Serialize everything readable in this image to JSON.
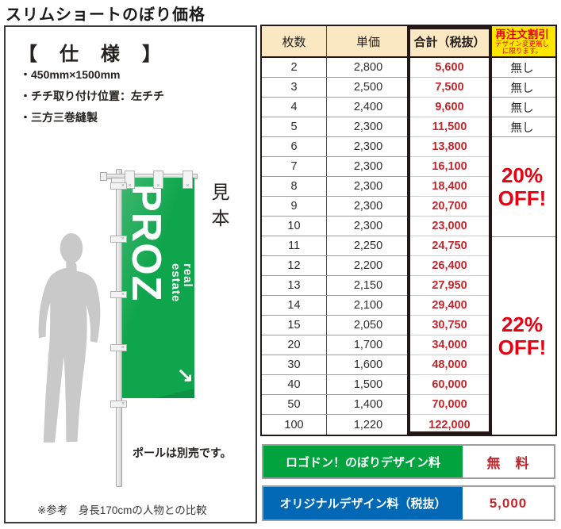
{
  "page": {
    "title": "スリムショートのぼり価格"
  },
  "spec": {
    "heading": "【　仕　様　】",
    "items": [
      "・450mm×1500mm",
      "・チチ取り付け位置：左チチ",
      "・三方三巻縫製"
    ],
    "sample_label": "見本",
    "flag": {
      "main_text": "PROZ",
      "sub_line1": "real",
      "sub_line2": "estate",
      "arrow_icon": "↗"
    },
    "pole_note": "ポールは別売です。",
    "reference_note": "※参考　身長170cmの人物との比較"
  },
  "price_table": {
    "headers": {
      "qty": "枚数",
      "unit": "単価",
      "total": "合計（税抜）",
      "discount": "再注文割引",
      "discount_note_line1": "デザイン変更無し",
      "discount_note_line2": "に限ります。"
    },
    "rows": [
      {
        "qty": "2",
        "unit": "2,800",
        "total": "5,600",
        "discount": "無し"
      },
      {
        "qty": "3",
        "unit": "2,500",
        "total": "7,500",
        "discount": "無し"
      },
      {
        "qty": "4",
        "unit": "2,400",
        "total": "9,600",
        "discount": "無し"
      },
      {
        "qty": "5",
        "unit": "2,300",
        "total": "11,500",
        "discount": "無し"
      },
      {
        "qty": "6",
        "unit": "2,300",
        "total": "13,800"
      },
      {
        "qty": "7",
        "unit": "2,300",
        "total": "16,100"
      },
      {
        "qty": "8",
        "unit": "2,300",
        "total": "18,400"
      },
      {
        "qty": "9",
        "unit": "2,300",
        "total": "20,700"
      },
      {
        "qty": "10",
        "unit": "2,300",
        "total": "23,000"
      },
      {
        "qty": "11",
        "unit": "2,250",
        "total": "24,750"
      },
      {
        "qty": "12",
        "unit": "2,200",
        "total": "26,400"
      },
      {
        "qty": "13",
        "unit": "2,150",
        "total": "27,950"
      },
      {
        "qty": "14",
        "unit": "2,100",
        "total": "29,400"
      },
      {
        "qty": "15",
        "unit": "2,050",
        "total": "30,750"
      },
      {
        "qty": "20",
        "unit": "1,700",
        "total": "34,000"
      },
      {
        "qty": "30",
        "unit": "1,600",
        "total": "48,000"
      },
      {
        "qty": "40",
        "unit": "1,500",
        "total": "60,000"
      },
      {
        "qty": "50",
        "unit": "1,400",
        "total": "70,000"
      },
      {
        "qty": "100",
        "unit": "1,220",
        "total": "122,000"
      }
    ],
    "discount_groups": [
      {
        "label": "20%\nOFF!",
        "applies_to_qty": "6-10"
      },
      {
        "label": "22%\nOFF!",
        "applies_to_qty": "11-100"
      }
    ]
  },
  "footer": {
    "logodon": {
      "label": "ロゴドン！のぼりデザイン料",
      "value": "無　料"
    },
    "original": {
      "label": "オリジナルデザイン料（税抜）",
      "value": "5,000"
    }
  },
  "colors": {
    "flag_green": "#0fa54c",
    "bar_green": "#00a33e",
    "bar_blue": "#0068b5",
    "price_red": "#c1272d",
    "highlight_red": "#e60012",
    "header_cream": "#fbe7c2",
    "header_yellow": "#ffe600"
  }
}
